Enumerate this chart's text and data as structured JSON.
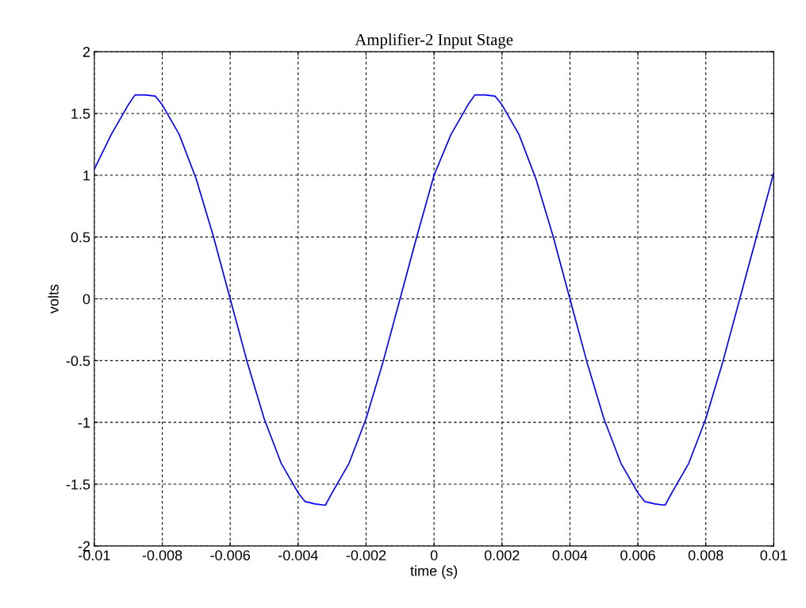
{
  "chart_data": {
    "type": "line",
    "title": "Amplifier-2 Input Stage",
    "xlabel": "time (s)",
    "ylabel": "volts",
    "series": [
      {
        "color": "#0000ff",
        "x": [
          -0.01,
          -0.0095,
          -0.009,
          -0.0088,
          -0.0085,
          -0.0082,
          -0.008,
          -0.0075,
          -0.007,
          -0.0065,
          -0.006,
          -0.0055,
          -0.005,
          -0.0045,
          -0.004,
          -0.0038,
          -0.0035,
          -0.0032,
          -0.003,
          -0.0025,
          -0.002,
          -0.0015,
          -0.001,
          -0.0005,
          0,
          0.0005,
          0.001,
          0.0012,
          0.0015,
          0.0018,
          0.002,
          0.0025,
          0.003,
          0.0035,
          0.004,
          0.0045,
          0.005,
          0.0055,
          0.006,
          0.0062,
          0.0065,
          0.0068,
          0.007,
          0.0075,
          0.008,
          0.0085,
          0.009,
          0.0095,
          0.01
        ],
        "values": [
          1.05,
          1.33,
          1.57,
          1.65,
          1.65,
          1.64,
          1.57,
          1.33,
          0.97,
          0.51,
          0,
          -0.51,
          -0.97,
          -1.33,
          -1.57,
          -1.64,
          -1.66,
          -1.67,
          -1.57,
          -1.33,
          -0.97,
          -0.51,
          0,
          0.51,
          1.0,
          1.33,
          1.57,
          1.65,
          1.65,
          1.64,
          1.57,
          1.33,
          0.97,
          0.51,
          0,
          -0.51,
          -0.97,
          -1.33,
          -1.57,
          -1.64,
          -1.66,
          -1.67,
          -1.57,
          -1.33,
          -0.97,
          -0.51,
          0,
          0.51,
          1.02
        ]
      }
    ],
    "xlim": [
      -0.01,
      0.01
    ],
    "xticks": [
      -0.01,
      -0.008,
      -0.006,
      -0.004,
      -0.002,
      0,
      0.002,
      0.004,
      0.006,
      0.008,
      0.01
    ],
    "ylim": [
      -2,
      2
    ],
    "yticks": [
      -2,
      -1.5,
      -1,
      -0.5,
      0,
      0.5,
      1,
      1.5,
      2
    ],
    "grid": true,
    "line_style": "solid",
    "marker": "none"
  }
}
